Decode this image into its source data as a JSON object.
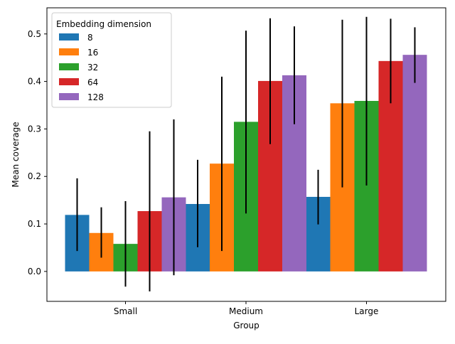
{
  "chart_data": {
    "type": "bar",
    "xlabel": "Group",
    "ylabel": "Mean coverage",
    "categories": [
      "Small",
      "Medium",
      "Large"
    ],
    "ylim": [
      -0.063,
      0.555
    ],
    "yticks": [
      0.0,
      0.1,
      0.2,
      0.3,
      0.4,
      0.5
    ],
    "ytick_labels": [
      "0.0",
      "0.1",
      "0.2",
      "0.3",
      "0.4",
      "0.5"
    ],
    "grid": false,
    "legend": {
      "title": "Embedding dimension",
      "placement": "top-left"
    },
    "series": [
      {
        "name": "8",
        "color": "#1f77b4",
        "values": [
          0.119,
          0.142,
          0.157
        ],
        "err_low": [
          0.043,
          0.051,
          0.099
        ],
        "err_high": [
          0.196,
          0.235,
          0.214
        ]
      },
      {
        "name": "16",
        "color": "#ff7f0e",
        "values": [
          0.081,
          0.227,
          0.354
        ],
        "err_low": [
          0.029,
          0.043,
          0.177
        ],
        "err_high": [
          0.135,
          0.41,
          0.53
        ]
      },
      {
        "name": "32",
        "color": "#2ca02c",
        "values": [
          0.058,
          0.315,
          0.359
        ],
        "err_low": [
          -0.032,
          0.122,
          0.181
        ],
        "err_high": [
          0.148,
          0.507,
          0.536
        ]
      },
      {
        "name": "64",
        "color": "#d62728",
        "values": [
          0.127,
          0.401,
          0.443
        ],
        "err_low": [
          -0.042,
          0.268,
          0.354
        ],
        "err_high": [
          0.295,
          0.533,
          0.532
        ]
      },
      {
        "name": "128",
        "color": "#9467bd",
        "values": [
          0.156,
          0.413,
          0.456
        ],
        "err_low": [
          -0.008,
          0.31,
          0.397
        ],
        "err_high": [
          0.32,
          0.516,
          0.514
        ]
      }
    ]
  }
}
